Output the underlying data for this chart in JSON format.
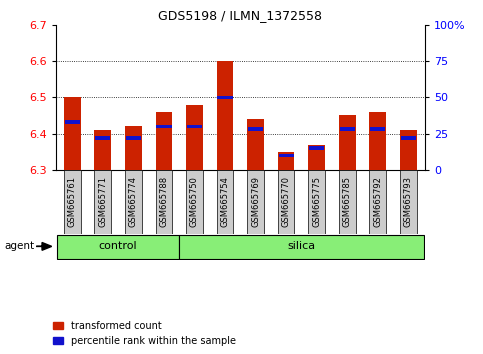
{
  "title": "GDS5198 / ILMN_1372558",
  "samples": [
    "GSM665761",
    "GSM665771",
    "GSM665774",
    "GSM665788",
    "GSM665750",
    "GSM665754",
    "GSM665769",
    "GSM665770",
    "GSM665775",
    "GSM665785",
    "GSM665792",
    "GSM665793"
  ],
  "red_values": [
    6.5,
    6.41,
    6.42,
    6.46,
    6.48,
    6.6,
    6.44,
    6.35,
    6.37,
    6.45,
    6.46,
    6.41
  ],
  "blue_percentiles": [
    33,
    22,
    22,
    30,
    30,
    50,
    28,
    10,
    15,
    28,
    28,
    22
  ],
  "ymin": 6.3,
  "ymax": 6.7,
  "yright_min": 0,
  "yright_max": 100,
  "yticks_left": [
    6.3,
    6.4,
    6.5,
    6.6,
    6.7
  ],
  "yticks_right": [
    0,
    25,
    50,
    75,
    100
  ],
  "ytick_right_labels": [
    "0",
    "25",
    "50",
    "75",
    "100%"
  ],
  "gridlines_at": [
    6.4,
    6.5,
    6.6
  ],
  "control_label": "control",
  "silica_label": "silica",
  "agent_label": "agent",
  "legend_red": "transformed count",
  "legend_blue": "percentile rank within the sample",
  "bar_color_red": "#cc2200",
  "bar_color_blue": "#1111cc",
  "control_bg": "#88ee77",
  "silica_bg": "#88ee77",
  "tick_bg": "#cccccc",
  "bar_width": 0.55,
  "n_control": 4,
  "n_silica": 8
}
